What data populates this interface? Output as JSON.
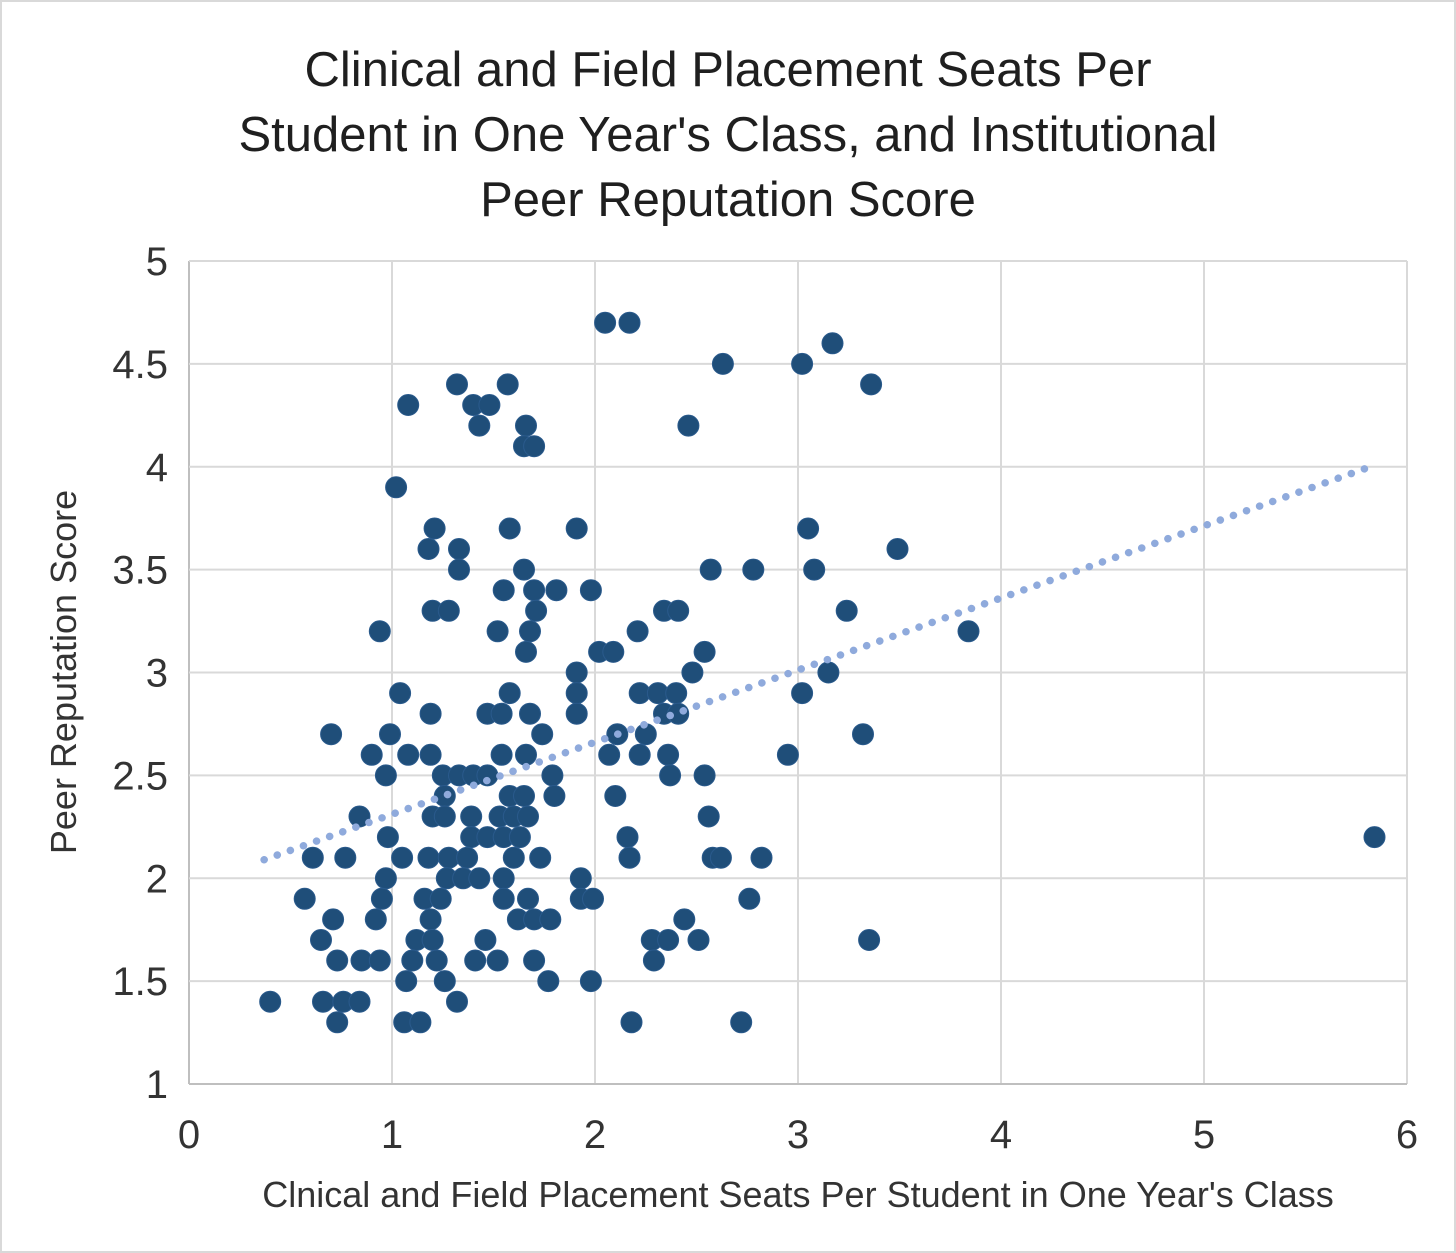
{
  "window": {
    "background": "#ffffff",
    "border_color": "#d9d9d9"
  },
  "chart_data": {
    "type": "scatter",
    "title": "Clinical and Field Placement Seats Per Student in One Year's Class, and Institutional Peer Reputation Score",
    "title_lines": [
      "Clinical and Field Placement Seats Per",
      "Student in One Year's Class, and Institutional",
      "Peer Reputation Score"
    ],
    "xlabel": "Clnical and Field Placement Seats Per Student in One Year's Class",
    "ylabel": "Peer Reputation Score",
    "xlim": [
      0,
      6
    ],
    "ylim": [
      1,
      5
    ],
    "x_ticks": [
      "0",
      "1",
      "2",
      "3",
      "4",
      "5",
      "6"
    ],
    "y_ticks": [
      "5",
      "4.5",
      "4",
      "3.5",
      "3",
      "2.5",
      "2",
      "1.5",
      "1"
    ],
    "grid": true,
    "legend_position": "none",
    "marker_color": "#1f4e79",
    "trendline_color": "#8faadc",
    "gridline_color": "#d9d9d9",
    "axis_line_color": "#bfbfbf",
    "title_color": "#1f1f1f",
    "text_color": "#333333",
    "trendline": {
      "style": "dotted",
      "x1": 0.37,
      "y1": 2.09,
      "x2": 5.82,
      "y2": 4.0
    },
    "points": [
      [
        2.05,
        4.7
      ],
      [
        2.17,
        4.7
      ],
      [
        3.17,
        4.6
      ],
      [
        2.63,
        4.5
      ],
      [
        3.02,
        4.5
      ],
      [
        1.32,
        4.4
      ],
      [
        1.57,
        4.4
      ],
      [
        3.36,
        4.4
      ],
      [
        1.08,
        4.3
      ],
      [
        1.4,
        4.3
      ],
      [
        1.48,
        4.3
      ],
      [
        1.43,
        4.2
      ],
      [
        1.66,
        4.2
      ],
      [
        2.46,
        4.2
      ],
      [
        1.65,
        4.1
      ],
      [
        1.7,
        4.1
      ],
      [
        1.02,
        3.9
      ],
      [
        1.21,
        3.7
      ],
      [
        1.58,
        3.7
      ],
      [
        1.91,
        3.7
      ],
      [
        3.05,
        3.7
      ],
      [
        1.18,
        3.6
      ],
      [
        1.33,
        3.6
      ],
      [
        3.49,
        3.6
      ],
      [
        1.33,
        3.5
      ],
      [
        1.65,
        3.5
      ],
      [
        2.57,
        3.5
      ],
      [
        2.78,
        3.5
      ],
      [
        3.08,
        3.5
      ],
      [
        1.55,
        3.4
      ],
      [
        1.7,
        3.4
      ],
      [
        1.81,
        3.4
      ],
      [
        1.98,
        3.4
      ],
      [
        1.2,
        3.3
      ],
      [
        1.28,
        3.3
      ],
      [
        1.71,
        3.3
      ],
      [
        2.34,
        3.3
      ],
      [
        2.41,
        3.3
      ],
      [
        3.24,
        3.3
      ],
      [
        0.94,
        3.2
      ],
      [
        1.52,
        3.2
      ],
      [
        1.68,
        3.2
      ],
      [
        2.21,
        3.2
      ],
      [
        3.84,
        3.2
      ],
      [
        1.66,
        3.1
      ],
      [
        2.02,
        3.1
      ],
      [
        2.09,
        3.1
      ],
      [
        2.54,
        3.1
      ],
      [
        1.91,
        3.0
      ],
      [
        2.48,
        3.0
      ],
      [
        3.15,
        3.0
      ],
      [
        1.04,
        2.9
      ],
      [
        1.58,
        2.9
      ],
      [
        1.91,
        2.9
      ],
      [
        2.22,
        2.9
      ],
      [
        2.31,
        2.9
      ],
      [
        2.4,
        2.9
      ],
      [
        3.02,
        2.9
      ],
      [
        1.19,
        2.8
      ],
      [
        1.47,
        2.8
      ],
      [
        1.54,
        2.8
      ],
      [
        1.68,
        2.8
      ],
      [
        1.91,
        2.8
      ],
      [
        2.34,
        2.8
      ],
      [
        2.41,
        2.8
      ],
      [
        0.7,
        2.7
      ],
      [
        0.99,
        2.7
      ],
      [
        1.74,
        2.7
      ],
      [
        2.11,
        2.7
      ],
      [
        2.25,
        2.7
      ],
      [
        3.32,
        2.7
      ],
      [
        0.9,
        2.6
      ],
      [
        1.08,
        2.6
      ],
      [
        1.19,
        2.6
      ],
      [
        1.54,
        2.6
      ],
      [
        1.66,
        2.6
      ],
      [
        2.07,
        2.6
      ],
      [
        2.22,
        2.6
      ],
      [
        2.36,
        2.6
      ],
      [
        2.95,
        2.6
      ],
      [
        0.97,
        2.5
      ],
      [
        1.25,
        2.5
      ],
      [
        1.33,
        2.5
      ],
      [
        1.4,
        2.5
      ],
      [
        1.47,
        2.5
      ],
      [
        1.79,
        2.5
      ],
      [
        2.37,
        2.5
      ],
      [
        2.54,
        2.5
      ],
      [
        1.26,
        2.4
      ],
      [
        1.58,
        2.4
      ],
      [
        1.65,
        2.4
      ],
      [
        1.8,
        2.4
      ],
      [
        2.1,
        2.4
      ],
      [
        0.84,
        2.3
      ],
      [
        1.2,
        2.3
      ],
      [
        1.26,
        2.3
      ],
      [
        1.39,
        2.3
      ],
      [
        1.53,
        2.3
      ],
      [
        1.6,
        2.3
      ],
      [
        1.67,
        2.3
      ],
      [
        2.56,
        2.3
      ],
      [
        0.98,
        2.2
      ],
      [
        1.39,
        2.2
      ],
      [
        1.47,
        2.2
      ],
      [
        1.55,
        2.2
      ],
      [
        1.63,
        2.2
      ],
      [
        2.16,
        2.2
      ],
      [
        5.84,
        2.2
      ],
      [
        0.61,
        2.1
      ],
      [
        0.77,
        2.1
      ],
      [
        1.05,
        2.1
      ],
      [
        1.18,
        2.1
      ],
      [
        1.28,
        2.1
      ],
      [
        1.37,
        2.1
      ],
      [
        1.6,
        2.1
      ],
      [
        1.73,
        2.1
      ],
      [
        2.17,
        2.1
      ],
      [
        2.58,
        2.1
      ],
      [
        2.62,
        2.1
      ],
      [
        2.82,
        2.1
      ],
      [
        0.97,
        2.0
      ],
      [
        1.27,
        2.0
      ],
      [
        1.35,
        2.0
      ],
      [
        1.43,
        2.0
      ],
      [
        1.55,
        2.0
      ],
      [
        1.93,
        2.0
      ],
      [
        0.57,
        1.9
      ],
      [
        0.95,
        1.9
      ],
      [
        1.16,
        1.9
      ],
      [
        1.24,
        1.9
      ],
      [
        1.55,
        1.9
      ],
      [
        1.67,
        1.9
      ],
      [
        1.93,
        1.9
      ],
      [
        1.99,
        1.9
      ],
      [
        2.76,
        1.9
      ],
      [
        0.71,
        1.8
      ],
      [
        0.92,
        1.8
      ],
      [
        1.19,
        1.8
      ],
      [
        1.62,
        1.8
      ],
      [
        1.7,
        1.8
      ],
      [
        1.78,
        1.8
      ],
      [
        2.44,
        1.8
      ],
      [
        0.65,
        1.7
      ],
      [
        1.12,
        1.7
      ],
      [
        1.2,
        1.7
      ],
      [
        1.46,
        1.7
      ],
      [
        2.28,
        1.7
      ],
      [
        2.36,
        1.7
      ],
      [
        2.51,
        1.7
      ],
      [
        3.35,
        1.7
      ],
      [
        0.73,
        1.6
      ],
      [
        0.85,
        1.6
      ],
      [
        0.94,
        1.6
      ],
      [
        1.1,
        1.6
      ],
      [
        1.22,
        1.6
      ],
      [
        1.41,
        1.6
      ],
      [
        1.52,
        1.6
      ],
      [
        1.7,
        1.6
      ],
      [
        2.29,
        1.6
      ],
      [
        1.07,
        1.5
      ],
      [
        1.26,
        1.5
      ],
      [
        1.77,
        1.5
      ],
      [
        1.98,
        1.5
      ],
      [
        0.4,
        1.4
      ],
      [
        0.66,
        1.4
      ],
      [
        0.76,
        1.4
      ],
      [
        0.84,
        1.4
      ],
      [
        1.32,
        1.4
      ],
      [
        0.73,
        1.3
      ],
      [
        1.06,
        1.3
      ],
      [
        1.14,
        1.3
      ],
      [
        2.18,
        1.3
      ],
      [
        2.72,
        1.3
      ]
    ]
  }
}
